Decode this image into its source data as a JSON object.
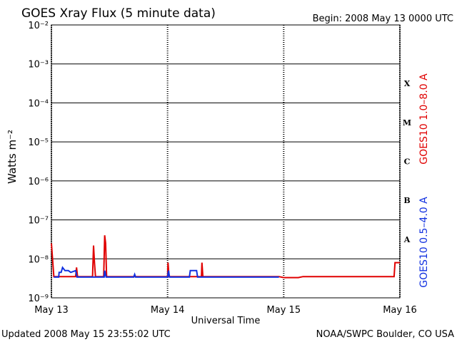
{
  "chart_data": {
    "type": "line",
    "title": "GOES Xray Flux (5 minute data)",
    "subtitle": "Begin:  2008 May 13 0000 UTC",
    "ylabel": "Watts m⁻²",
    "xlabel": "Universal Time",
    "footer_left": "Updated 2008 May 15 23:55:02 UTC",
    "footer_right": "NOAA/SWPC Boulder, CO USA",
    "log_y": true,
    "grid": true,
    "ylim": [
      1e-09,
      0.01
    ],
    "yticks": [
      {
        "value": 1e-09,
        "label": "10⁻⁹"
      },
      {
        "value": 1e-08,
        "label": "10⁻⁸"
      },
      {
        "value": 1e-07,
        "label": "10⁻⁷"
      },
      {
        "value": 1e-06,
        "label": "10⁻⁶"
      },
      {
        "value": 1e-05,
        "label": "10⁻⁵"
      },
      {
        "value": 0.0001,
        "label": "10⁻⁴"
      },
      {
        "value": 0.001,
        "label": "10⁻³"
      },
      {
        "value": 0.01,
        "label": "10⁻²"
      }
    ],
    "xlim": [
      0,
      72
    ],
    "xticks": [
      {
        "value": 0,
        "label": "May 13"
      },
      {
        "value": 24,
        "label": "May 14"
      },
      {
        "value": 48,
        "label": "May 15"
      },
      {
        "value": 72,
        "label": "May 16"
      }
    ],
    "flare_classes": [
      "A",
      "B",
      "C",
      "M",
      "X"
    ],
    "series": [
      {
        "name": "GOES10 1.0–8.0 A",
        "color": "#e00000",
        "x": [
          0,
          0.5,
          5,
          5.2,
          5.4,
          8.5,
          8.7,
          8.9,
          9.1,
          10.8,
          11,
          11.2,
          11.4,
          24,
          24.1,
          24.3,
          31,
          31.1,
          31.3,
          47,
          48,
          51,
          52,
          70.8,
          71,
          72
        ],
        "values": [
          2.5e-08,
          3.5e-09,
          3.5e-09,
          6e-09,
          3.5e-09,
          3.5e-09,
          2.2e-08,
          8e-09,
          3.5e-09,
          3.5e-09,
          4e-08,
          2.5e-08,
          3.5e-09,
          3.5e-09,
          8e-09,
          3.5e-09,
          3.5e-09,
          8e-09,
          3.5e-09,
          3.5e-09,
          3.3e-09,
          3.3e-09,
          3.5e-09,
          3.5e-09,
          8e-09,
          8e-09
        ]
      },
      {
        "name": "GOES10 0.5–4.0 A",
        "color": "#1030e0",
        "x": [
          0.5,
          1.5,
          1.6,
          2,
          2.3,
          2.8,
          3.5,
          4,
          5,
          5.3,
          10.9,
          11,
          11.3,
          17,
          17.2,
          17.4,
          24,
          24.2,
          24.4,
          28.5,
          28.7,
          30,
          30.2,
          47
        ],
        "values": [
          3.4e-09,
          3.4e-09,
          4.5e-09,
          4.5e-09,
          6e-09,
          5e-09,
          5e-09,
          4.5e-09,
          5e-09,
          3.4e-09,
          3.4e-09,
          5e-09,
          3.4e-09,
          3.4e-09,
          4e-09,
          3.4e-09,
          3.4e-09,
          5e-09,
          3.4e-09,
          3.4e-09,
          5e-09,
          5e-09,
          3.4e-09,
          3.4e-09
        ]
      }
    ]
  }
}
